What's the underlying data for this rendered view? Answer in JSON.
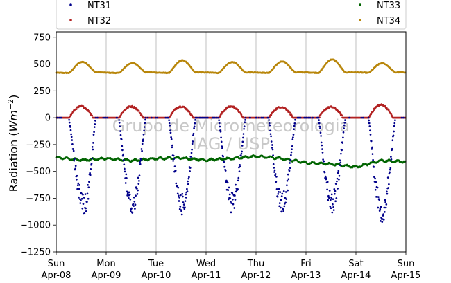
{
  "chart_data": {
    "type": "scatter",
    "ylabel": "Radiation ($Wm^{-2}$)",
    "ylabel_main": "Radiation (",
    "ylabel_unit": "Wm",
    "ylabel_exp": "−2",
    "ylabel_close": ")",
    "ylim": [
      -1250,
      800
    ],
    "yticks": [
      750,
      500,
      250,
      0,
      -250,
      -500,
      -750,
      -1000,
      -1250
    ],
    "ytick_labels": [
      "750",
      "500",
      "250",
      "0",
      "−250",
      "−500",
      "−750",
      "−1000",
      "−1250"
    ],
    "xlim": [
      "2018-04-08 00:00",
      "2018-04-15 00:00"
    ],
    "xticks": [
      {
        "date": "2018-04-08",
        "day": "Sun",
        "label": "Apr-08"
      },
      {
        "date": "2018-04-09",
        "day": "Mon",
        "label": "Apr-09"
      },
      {
        "date": "2018-04-10",
        "day": "Tue",
        "label": "Apr-10"
      },
      {
        "date": "2018-04-11",
        "day": "Wed",
        "label": "Apr-11"
      },
      {
        "date": "2018-04-12",
        "day": "Thu",
        "label": "Apr-12"
      },
      {
        "date": "2018-04-13",
        "day": "Fri",
        "label": "Apr-13"
      },
      {
        "date": "2018-04-14",
        "day": "Sat",
        "label": "Apr-14"
      },
      {
        "date": "2018-04-15",
        "day": "Sun",
        "label": "Apr-15"
      }
    ],
    "grid": "vertical",
    "legend_position": "top",
    "watermark": [
      "Grupo de Micrometeorologia",
      "IAG / USP"
    ],
    "series": [
      {
        "name": "NT31",
        "color": "#00008b",
        "daily_min": [
          -920,
          -920,
          -910,
          -890,
          -900,
          -890,
          -980
        ],
        "daily_min_hour": [
          13.5,
          12.5,
          12.5,
          12.5,
          12.5,
          12.5,
          12.5
        ],
        "night_value": 0
      },
      {
        "name": "NT32",
        "color": "#b22222",
        "daily_max": [
          105,
          105,
          105,
          105,
          100,
          100,
          120
        ],
        "night_value": 0
      },
      {
        "name": "NT33",
        "color": "#006400",
        "points": [
          [
            "2018-04-08 00:00",
            -370
          ],
          [
            "2018-04-08 12:00",
            -395
          ],
          [
            "2018-04-09 00:00",
            -380
          ],
          [
            "2018-04-09 12:00",
            -400
          ],
          [
            "2018-04-10 00:00",
            -380
          ],
          [
            "2018-04-10 12:00",
            -375
          ],
          [
            "2018-04-11 00:00",
            -395
          ],
          [
            "2018-04-11 12:00",
            -380
          ],
          [
            "2018-04-12 00:00",
            -360
          ],
          [
            "2018-04-12 12:00",
            -380
          ],
          [
            "2018-04-13 00:00",
            -420
          ],
          [
            "2018-04-13 12:00",
            -430
          ],
          [
            "2018-04-14 00:00",
            -460
          ],
          [
            "2018-04-14 12:00",
            -400
          ],
          [
            "2018-04-15 00:00",
            -410
          ]
        ]
      },
      {
        "name": "NT34",
        "color": "#b8860b",
        "daily_max": [
          520,
          510,
          535,
          520,
          525,
          545,
          510
        ],
        "night_value": 420
      }
    ]
  }
}
